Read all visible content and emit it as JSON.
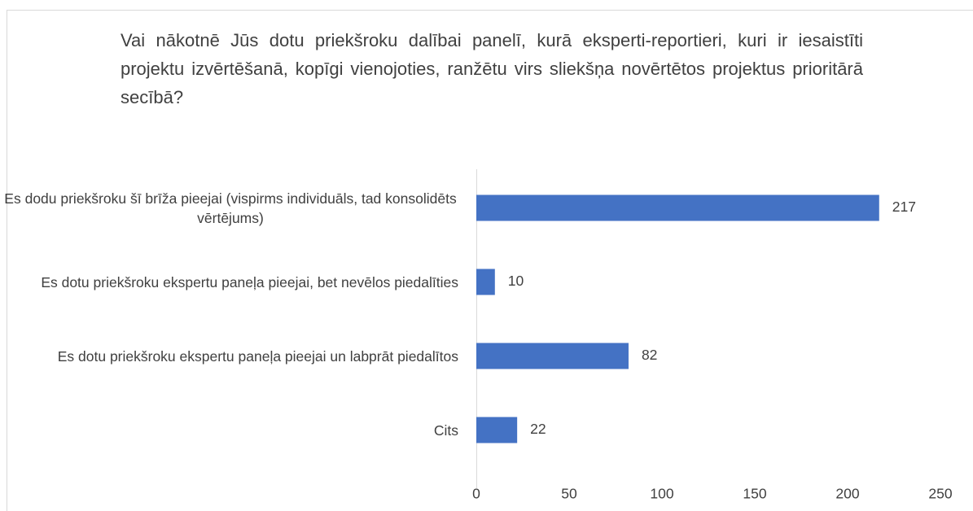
{
  "chart_data": {
    "type": "bar",
    "orientation": "horizontal",
    "title": "Vai nākotnē Jūs dotu priekšroku dalībai panelī, kurā eksperti-reportieri, kuri ir iesaistīti projektu izvērtēšanā, kopīgi vienojoties, ranžētu virs sliekšņa novērtētos projektus prioritārā secībā?",
    "categories": [
      "Es dodu priekšroku šī brīža pieejai (vispirms individuāls, tad konsolidēts vērtējums)",
      "Es dotu priekšroku ekspertu paneļa pieejai, bet nevēlos piedalīties",
      "Es dotu priekšroku ekspertu paneļa pieejai un labprāt piedalītos",
      "Cits"
    ],
    "values": [
      217,
      10,
      82,
      22
    ],
    "color": "#4472c4",
    "xlim": [
      0,
      250
    ],
    "xticks": [
      0,
      50,
      100,
      150,
      200,
      250
    ],
    "grid": false
  }
}
